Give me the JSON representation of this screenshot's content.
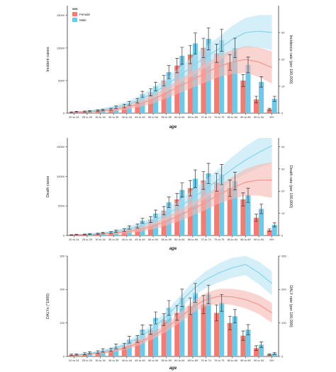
{
  "colors": {
    "female": "#f07c73",
    "male": "#6ec8e6",
    "female_band": "#f7b8b3",
    "male_band": "#b8e4f3",
    "female_line": "#f39a93",
    "male_line": "#8dd5ee"
  },
  "legend": {
    "title": "sex",
    "items": [
      "Female",
      "Male"
    ]
  },
  "chart_data": [
    {
      "type": "bar",
      "categories": [
        "20 to 24",
        "25 to 29",
        "30 to 34",
        "35 to 39",
        "40 to 44",
        "45 to 49",
        "50 to 54",
        "55 to 59",
        "60 to 64",
        "65 to 69",
        "70 to 74",
        "75 to 79",
        "80 to 84",
        "85 to 89",
        "90 to 94",
        "95+"
      ],
      "ylabel": "Incident cases",
      "y2label": "Incidence rate (per 100,000)",
      "xlabel": "age",
      "ylim": [
        0,
        16500
      ],
      "yticks": [
        0,
        5000,
        10000,
        15000
      ],
      "y2lim": [
        0,
        40
      ],
      "y2ticks": [
        0,
        10,
        20,
        30
      ],
      "series": [
        {
          "name": "Female",
          "values": [
            150,
            250,
            400,
            600,
            1100,
            1900,
            3200,
            5000,
            7300,
            9000,
            10000,
            9200,
            7800,
            5000,
            2100,
            600
          ],
          "err": [
            60,
            80,
            100,
            150,
            250,
            350,
            550,
            800,
            1100,
            1400,
            1500,
            1400,
            1200,
            900,
            500,
            150
          ]
        },
        {
          "name": "Male",
          "values": [
            200,
            300,
            500,
            900,
            1500,
            2900,
            4100,
            6300,
            8800,
            10700,
            11400,
            11200,
            10000,
            7400,
            4800,
            2200
          ],
          "err": [
            70,
            90,
            120,
            200,
            300,
            450,
            650,
            1000,
            1300,
            1600,
            1700,
            1700,
            1500,
            1200,
            800,
            400
          ]
        }
      ],
      "rate_series": [
        {
          "name": "Female",
          "values": [
            0.3,
            0.5,
            0.8,
            1.3,
            2.2,
            3.5,
            5.2,
            7.5,
            10,
            12.5,
            15,
            17.5,
            19,
            20,
            19,
            17
          ],
          "band": [
            0.15,
            0.25,
            0.4,
            0.6,
            0.9,
            1.2,
            1.6,
            2,
            2.5,
            3,
            3.5,
            4,
            4.5,
            5,
            5.5,
            6
          ]
        },
        {
          "name": "Male",
          "values": [
            0.4,
            0.7,
            1.2,
            2,
            3.2,
            5,
            7.5,
            10.5,
            14,
            17.5,
            21,
            24,
            27.5,
            30,
            30.5,
            30
          ],
          "band": [
            0.2,
            0.3,
            0.5,
            0.8,
            1.1,
            1.5,
            2,
            2.5,
            3,
            3.5,
            4,
            4.5,
            5,
            5.5,
            6,
            6.5
          ]
        }
      ]
    },
    {
      "type": "bar",
      "categories": [
        "20 to 24",
        "25 to 29",
        "30 to 34",
        "35 to 39",
        "40 to 44",
        "45 to 49",
        "50 to 54",
        "55 to 59",
        "60 to 64",
        "65 to 69",
        "70 to 74",
        "75 to 79",
        "80 to 84",
        "85 to 89",
        "90 to 94",
        "95+"
      ],
      "ylabel": "Death cases",
      "y2label": "Death rate (per 100,000)",
      "xlabel": "age",
      "ylim": [
        0,
        16500
      ],
      "yticks": [
        0,
        5000,
        10000,
        15000
      ],
      "y2lim": [
        0,
        44
      ],
      "y2ticks": [
        0,
        10,
        20,
        30,
        40
      ],
      "series": [
        {
          "name": "Female",
          "values": [
            100,
            180,
            300,
            500,
            900,
            1600,
            2700,
            4200,
            6100,
            8000,
            9300,
            9000,
            8000,
            6100,
            3000,
            900
          ],
          "err": [
            40,
            60,
            90,
            140,
            220,
            330,
            500,
            700,
            1000,
            1300,
            1500,
            1500,
            1400,
            1100,
            600,
            200
          ]
        },
        {
          "name": "Male",
          "values": [
            160,
            250,
            430,
            750,
            1350,
            2500,
            3700,
            5600,
            7700,
            9600,
            10500,
            10300,
            9200,
            6800,
            4500,
            1800
          ],
          "err": [
            50,
            80,
            110,
            180,
            280,
            420,
            600,
            900,
            1200,
            1500,
            1700,
            1700,
            1500,
            1200,
            800,
            350
          ]
        }
      ],
      "rate_series": [
        {
          "name": "Female",
          "values": [
            0.2,
            0.4,
            0.6,
            1,
            1.7,
            2.8,
            4.3,
            6.5,
            9,
            12,
            15,
            18.5,
            21.5,
            24,
            25,
            25
          ],
          "band": [
            0.1,
            0.2,
            0.3,
            0.5,
            0.8,
            1.1,
            1.5,
            2,
            2.5,
            3,
            3.5,
            4,
            5,
            6,
            7,
            8
          ]
        },
        {
          "name": "Male",
          "values": [
            0.3,
            0.5,
            0.9,
            1.6,
            2.7,
            4.3,
            6.5,
            9.5,
            13,
            17,
            21,
            25.5,
            30,
            34,
            37.5,
            40.5
          ],
          "band": [
            0.15,
            0.25,
            0.4,
            0.7,
            1,
            1.4,
            1.9,
            2.5,
            3,
            3.6,
            4.2,
            4.8,
            5.5,
            6.2,
            7,
            7.8
          ]
        }
      ]
    },
    {
      "type": "bar",
      "categories": [
        "20 to 24",
        "25 to 29",
        "30 to 34",
        "35 to 39",
        "40 to 44",
        "45 to 49",
        "50 to 54",
        "55 to 59",
        "60 to 64",
        "65 to 69",
        "70 to 74",
        "75 to 79",
        "80 to 84",
        "85 to 89",
        "90 to 94",
        "95+"
      ],
      "ylabel": "DALYs (*1000)",
      "y2label": "DALY rate (per 100,000)",
      "xlabel": "age",
      "ylim": [
        0,
        300
      ],
      "yticks": [
        0,
        100,
        200,
        300
      ],
      "y2lim": [
        0,
        300
      ],
      "y2ticks": [
        0,
        100,
        200,
        300
      ],
      "series": [
        {
          "name": "Female",
          "values": [
            5,
            8,
            13,
            20,
            32,
            52,
            80,
            110,
            130,
            150,
            155,
            130,
            100,
            62,
            25,
            6
          ],
          "err": [
            2,
            3,
            4,
            5,
            7,
            10,
            14,
            18,
            22,
            25,
            27,
            24,
            20,
            14,
            7,
            2
          ]
        },
        {
          "name": "Male",
          "values": [
            6,
            11,
            18,
            30,
            50,
            80,
            115,
            145,
            175,
            190,
            185,
            160,
            120,
            80,
            35,
            9
          ],
          "err": [
            2,
            3,
            5,
            7,
            10,
            14,
            18,
            22,
            26,
            28,
            28,
            25,
            20,
            15,
            8,
            3
          ]
        }
      ],
      "rate_series": [
        {
          "name": "Female",
          "values": [
            3,
            6,
            10,
            17,
            27,
            42,
            62,
            86,
            115,
            148,
            170,
            180,
            178,
            170,
            155,
            130
          ],
          "band": [
            1,
            2,
            3,
            4,
            6,
            8,
            10,
            12,
            15,
            18,
            20,
            22,
            24,
            26,
            28,
            30
          ]
        },
        {
          "name": "Male",
          "values": [
            4,
            8,
            14,
            23,
            37,
            58,
            85,
            120,
            160,
            200,
            230,
            250,
            265,
            275,
            250,
            218
          ],
          "band": [
            1.5,
            2.5,
            4,
            5.5,
            7.5,
            10,
            13,
            16,
            19,
            22,
            25,
            28,
            30,
            32,
            34,
            36
          ]
        }
      ]
    }
  ]
}
